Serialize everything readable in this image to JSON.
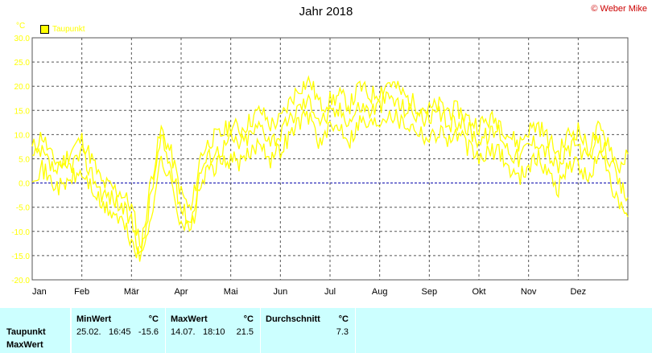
{
  "title": "Jahr 2018",
  "copyright": "© Weber Mike",
  "legend_label": "Taupunkt",
  "unit": "°C",
  "colors": {
    "series": "#ffff00",
    "grid": "#555555",
    "zero_line": "#0000aa",
    "stats_bg": "#ccffff"
  },
  "chart_data": {
    "type": "line",
    "title": "Jahr 2018",
    "ylabel": "°C",
    "ylim": [
      -20,
      30
    ],
    "yticks": [
      "30.0",
      "25.0",
      "20.0",
      "15.0",
      "10.0",
      "5.0",
      "0.0",
      "-5.0",
      "-10.0",
      "-15.0",
      "-20.0"
    ],
    "xticks": [
      "Jan",
      "Feb",
      "Mär",
      "Apr",
      "Mai",
      "Jun",
      "Jul",
      "Aug",
      "Sep",
      "Okt",
      "Nov",
      "Dez"
    ],
    "grid": true,
    "legend": "top-left",
    "series": [
      {
        "name": "Taupunkt",
        "x_unit": "month",
        "x": [
          0,
          0.2,
          0.4,
          0.6,
          0.8,
          1.0,
          1.2,
          1.4,
          1.6,
          1.8,
          2.0,
          2.2,
          2.4,
          2.6,
          2.8,
          3.0,
          3.2,
          3.4,
          3.6,
          3.8,
          4.0,
          4.2,
          4.4,
          4.6,
          4.8,
          5.0,
          5.2,
          5.4,
          5.6,
          5.8,
          6.0,
          6.2,
          6.4,
          6.6,
          6.8,
          7.0,
          7.2,
          7.4,
          7.6,
          7.8,
          8.0,
          8.2,
          8.4,
          8.6,
          8.8,
          9.0,
          9.2,
          9.4,
          9.6,
          9.8,
          10.0,
          10.2,
          10.4,
          10.6,
          10.8,
          11.0,
          11.2,
          11.4,
          11.6,
          11.8,
          12.0
        ],
        "values": [
          5,
          6,
          3,
          2,
          4,
          6,
          2,
          -2,
          -3,
          -5,
          -8,
          -15,
          -2,
          9,
          3,
          -5,
          -8,
          3,
          6,
          7,
          9,
          8,
          10,
          12,
          9,
          10,
          13,
          16,
          17,
          13,
          14,
          15,
          13,
          16,
          15,
          16,
          18,
          16,
          15,
          14,
          13,
          14,
          12,
          13,
          11,
          9,
          10,
          11,
          7,
          5,
          8,
          9,
          6,
          3,
          7,
          8,
          4,
          9,
          6,
          0,
          -3
        ],
        "upper": [
          7,
          10,
          5,
          4,
          7,
          9,
          5,
          0,
          -1,
          -2,
          -5,
          -13,
          1,
          11,
          6,
          -2,
          -6,
          6,
          9,
          10,
          12,
          11,
          13,
          15,
          12,
          13,
          17,
          20,
          21,
          16,
          17,
          18,
          16,
          20,
          18,
          19,
          21,
          19,
          17,
          16,
          15,
          16,
          15,
          15,
          13,
          12,
          13,
          13,
          10,
          8,
          11,
          12,
          9,
          6,
          10,
          11,
          7,
          11,
          9,
          3,
          6
        ],
        "lower": [
          2,
          3,
          0,
          -1,
          1,
          2,
          -1,
          -5,
          -6,
          -8,
          -12,
          -16,
          -6,
          5,
          0,
          -8,
          -10,
          0,
          3,
          4,
          5,
          4,
          6,
          9,
          5,
          7,
          10,
          13,
          14,
          8,
          11,
          12,
          9,
          13,
          12,
          13,
          15,
          13,
          12,
          11,
          9,
          11,
          9,
          10,
          7,
          5,
          6,
          7,
          3,
          1,
          4,
          5,
          2,
          -1,
          4,
          4,
          0,
          6,
          3,
          -5,
          -7
        ]
      }
    ]
  },
  "stats": {
    "row_labels": [
      "Taupunkt",
      "MaxWert"
    ],
    "min": {
      "header": "MinWert",
      "unit": "°C",
      "date": "25.02.",
      "time": "16:45",
      "value": "-15.6"
    },
    "max": {
      "header": "MaxWert",
      "unit": "°C",
      "date": "14.07.",
      "time": "18:10",
      "value": "21.5"
    },
    "avg": {
      "header": "Durchschnitt",
      "unit": "°C",
      "value": "7.3"
    }
  }
}
